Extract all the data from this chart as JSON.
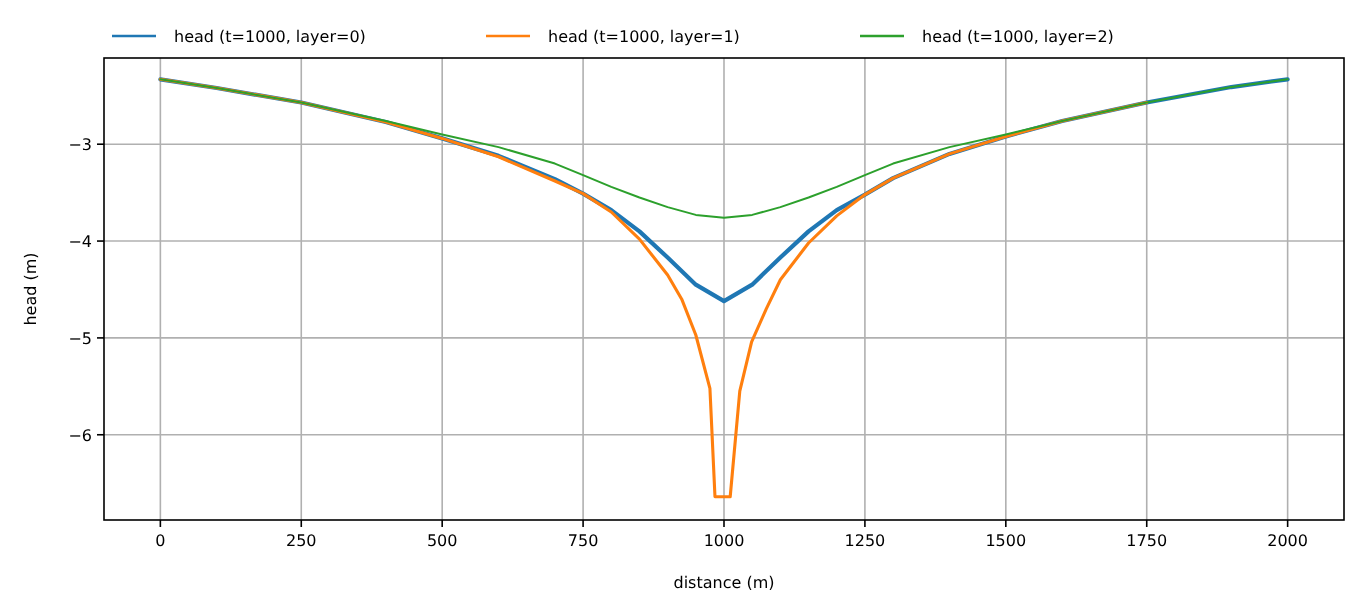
{
  "chart_data": {
    "type": "line",
    "xlabel": "distance (m)",
    "ylabel": "head (m)",
    "xlim": [
      -100,
      2100
    ],
    "xticks": [
      0,
      250,
      500,
      750,
      1000,
      1250,
      1500,
      1750,
      2000
    ],
    "ylim": [
      -6.88,
      -2.11
    ],
    "yticks": [
      -3,
      -4,
      -5,
      -6
    ],
    "grid": true,
    "legend": "top",
    "line_style": "solid",
    "marker": "none",
    "series": [
      {
        "name": "head (t=1000, layer=0)",
        "color": "#1f77b4",
        "x": [
          0,
          100,
          250,
          400,
          500,
          600,
          700,
          750,
          800,
          850,
          900,
          950,
          1000,
          1050,
          1100,
          1150,
          1200,
          1250,
          1300,
          1400,
          1500,
          1600,
          1750,
          1900,
          2000
        ],
        "values": [
          -2.33,
          -2.42,
          -2.57,
          -2.77,
          -2.94,
          -3.12,
          -3.36,
          -3.51,
          -3.68,
          -3.9,
          -4.17,
          -4.45,
          -4.62,
          -4.45,
          -4.17,
          -3.9,
          -3.68,
          -3.52,
          -3.35,
          -3.1,
          -2.92,
          -2.76,
          -2.57,
          -2.41,
          -2.33
        ]
      },
      {
        "name": "head (t=1000, layer=1)",
        "color": "#ff7f0e",
        "x": [
          0,
          100,
          250,
          400,
          500,
          600,
          700,
          750,
          800,
          850,
          900,
          925,
          950,
          975,
          984,
          1011,
          1028,
          1049,
          1075,
          1100,
          1150,
          1200,
          1250,
          1300,
          1400,
          1500,
          1600,
          1750
        ],
        "values": [
          -2.33,
          -2.42,
          -2.57,
          -2.77,
          -2.94,
          -3.13,
          -3.38,
          -3.51,
          -3.7,
          -3.98,
          -4.35,
          -4.6,
          -4.97,
          -5.52,
          -6.64,
          -6.64,
          -5.55,
          -5.04,
          -4.7,
          -4.4,
          -4.02,
          -3.74,
          -3.52,
          -3.35,
          -3.1,
          -2.92,
          -2.76,
          -2.57
        ]
      },
      {
        "name": "head (t=1000, layer=2)",
        "color": "#2ca02c",
        "x": [
          0,
          100,
          250,
          400,
          500,
          600,
          700,
          750,
          800,
          850,
          900,
          950,
          1000,
          1050,
          1100,
          1150,
          1200,
          1250,
          1300,
          1400,
          1500,
          1600,
          1750,
          1900,
          2000
        ],
        "values": [
          -2.33,
          -2.42,
          -2.57,
          -2.76,
          -2.9,
          -3.03,
          -3.2,
          -3.32,
          -3.44,
          -3.55,
          -3.65,
          -3.73,
          -3.76,
          -3.73,
          -3.65,
          -3.55,
          -3.44,
          -3.32,
          -3.2,
          -3.03,
          -2.9,
          -2.76,
          -2.57,
          -2.41,
          -2.33
        ]
      }
    ]
  }
}
